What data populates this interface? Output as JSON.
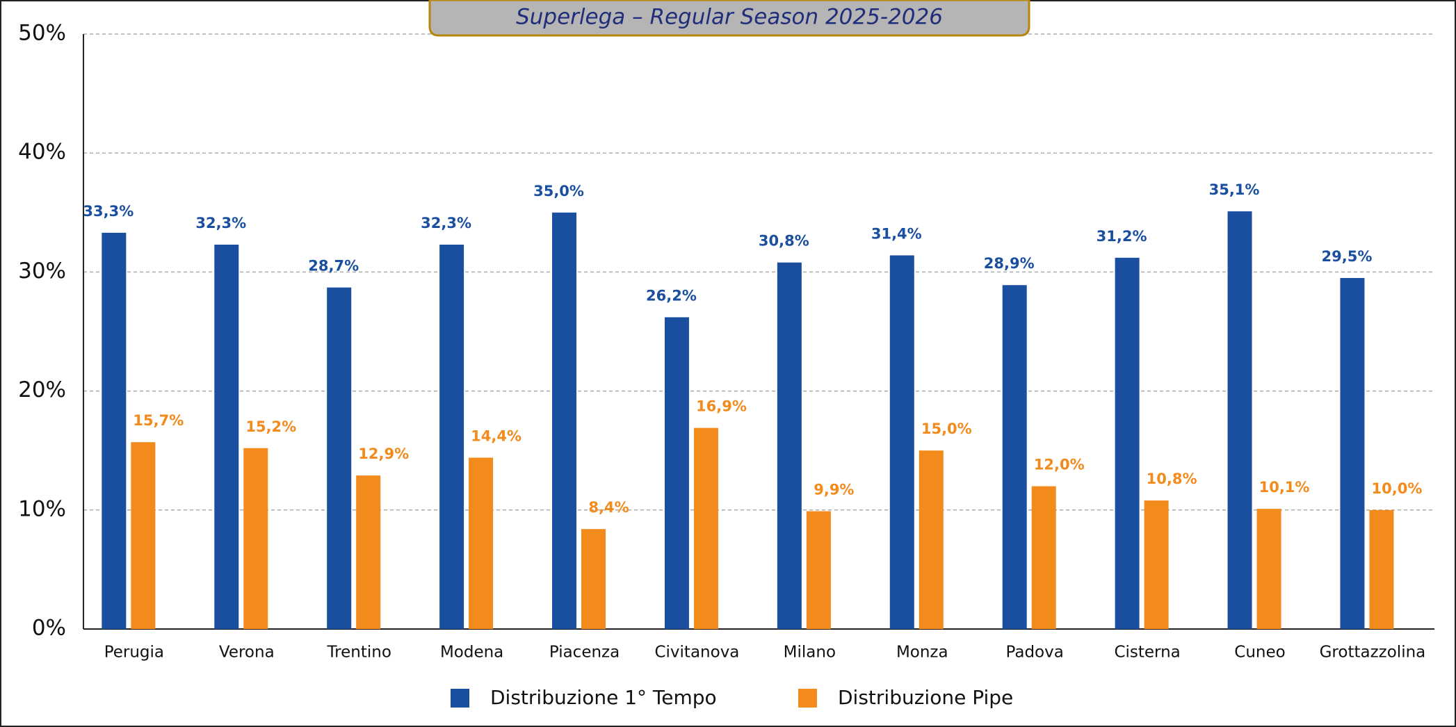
{
  "chart_data": {
    "type": "bar",
    "title": "Superlega – Regular Season 2025-2026",
    "categories": [
      "Perugia",
      "Verona",
      "Trentino",
      "Modena",
      "Piacenza",
      "Civitanova",
      "Milano",
      "Monza",
      "Padova",
      "Cisterna",
      "Cuneo",
      "Grottazzolina"
    ],
    "series": [
      {
        "name": "Distribuzione 1° Tempo",
        "color": "#1a4fa0",
        "values": [
          33.3,
          32.3,
          28.7,
          32.3,
          35.0,
          26.2,
          30.8,
          31.4,
          28.9,
          31.2,
          35.1,
          29.5
        ],
        "value_labels": [
          "33,3%",
          "32,3%",
          "28,7%",
          "32,3%",
          "35,0%",
          "26,2%",
          "30,8%",
          "31,4%",
          "28,9%",
          "31,2%",
          "35,1%",
          "29,5%"
        ]
      },
      {
        "name": "Distribuzione Pipe",
        "color": "#f28a1c",
        "values": [
          15.7,
          15.2,
          12.9,
          14.4,
          8.4,
          16.9,
          9.9,
          15.0,
          12.0,
          10.8,
          10.1,
          10.0
        ],
        "value_labels": [
          "15,7%",
          "15,2%",
          "12,9%",
          "14,4%",
          "8,4%",
          "16,9%",
          "9,9%",
          "15,0%",
          "12,0%",
          "10,8%",
          "10,1%",
          "10,0%"
        ]
      }
    ],
    "ylim": [
      0,
      50
    ],
    "yticks": [
      {
        "value": 0,
        "label": "0%"
      },
      {
        "value": 10,
        "label": "10%"
      },
      {
        "value": 20,
        "label": "20%"
      },
      {
        "value": 30,
        "label": "30%"
      },
      {
        "value": 40,
        "label": "40%"
      },
      {
        "value": 50,
        "label": "50%"
      }
    ],
    "grid": true,
    "legend": "bottom"
  }
}
